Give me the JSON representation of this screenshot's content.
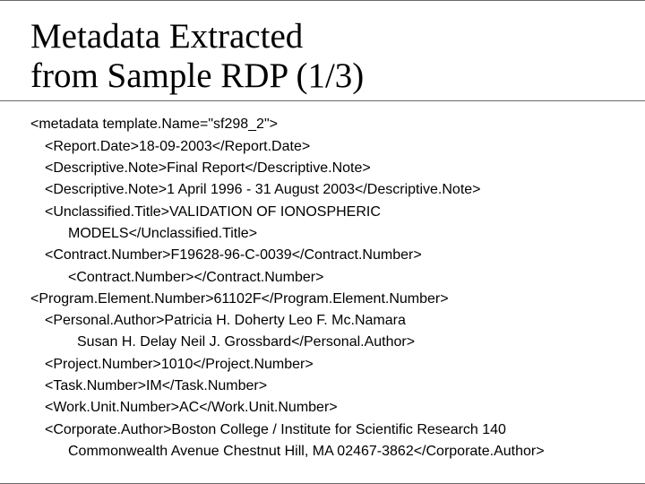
{
  "title": "Metadata Extracted\nfrom Sample RDP (1/3)",
  "lines": [
    {
      "indent": 0,
      "text": "<metadata template.Name=\"sf298_2\">"
    },
    {
      "indent": 1,
      "text": "<Report.Date>18-09-2003</Report.Date>"
    },
    {
      "indent": 1,
      "text": "<Descriptive.Note>Final Report</Descriptive.Note>"
    },
    {
      "indent": 1,
      "text": "<Descriptive.Note>1 April 1996 - 31 August 2003</Descriptive.Note>"
    },
    {
      "indent": 1,
      "text": "<Unclassified.Title>VALIDATION OF IONOSPHERIC"
    },
    {
      "indent": 2,
      "text": "MODELS</Unclassified.Title>"
    },
    {
      "indent": 1,
      "text": "<Contract.Number>F19628-96-C-0039</Contract.Number>"
    },
    {
      "indent": 2,
      "text": "<Contract.Number></Contract.Number>"
    },
    {
      "indent": 0,
      "text": "<Program.Element.Number>61102F</Program.Element.Number>"
    },
    {
      "indent": 1,
      "text": "<Personal.Author>Patricia H. Doherty Leo F. Mc.Namara"
    },
    {
      "indent": 3,
      "text": "Susan H. Delay Neil J. Grossbard</Personal.Author>"
    },
    {
      "indent": 1,
      "text": "<Project.Number>1010</Project.Number>"
    },
    {
      "indent": 1,
      "text": "<Task.Number>IM</Task.Number>"
    },
    {
      "indent": 1,
      "text": "<Work.Unit.Number>AC</Work.Unit.Number>"
    },
    {
      "indent": 1,
      "text": "<Corporate.Author>Boston College / Institute for Scientific Research 140"
    },
    {
      "indent": 2,
      "text": "Commonwealth Avenue Chestnut Hill, MA 02467-3862</Corporate.Author>"
    }
  ],
  "colors": {
    "text": "#000000",
    "rule": "#6a6a6a",
    "background": "#ffffff"
  },
  "fonts": {
    "title_family": "Times New Roman",
    "title_size_pt": 29,
    "body_family": "Arial",
    "body_size_pt": 12
  }
}
